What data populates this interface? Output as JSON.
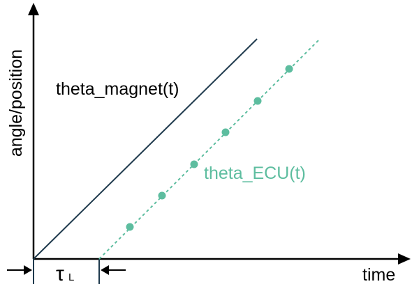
{
  "axes": {
    "y_label": "angle/position",
    "x_label": "time"
  },
  "curves": {
    "magnet_label": "theta_magnet(t)",
    "ecu_label": "theta_ECU(t)"
  },
  "lag": {
    "symbol": "τ",
    "subscript": "L"
  },
  "colors": {
    "axis": "#000000",
    "magnet": "#1f3a4d",
    "ecu": "#5dbd9f",
    "lag_box": "#1f3a4d"
  }
}
